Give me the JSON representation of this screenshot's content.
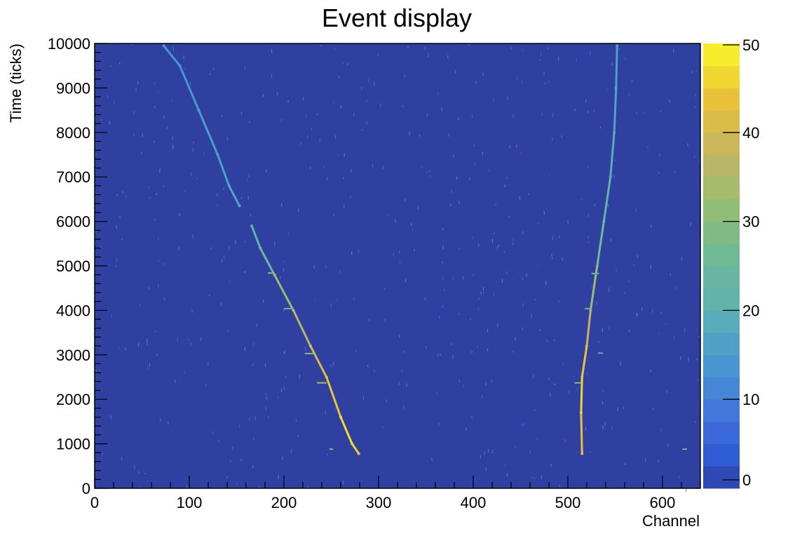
{
  "chart_data": {
    "type": "heatmap",
    "title": "Event display",
    "xlabel": "Channel",
    "ylabel": "Time (ticks)",
    "xlim": [
      0,
      640
    ],
    "ylim": [
      0,
      10000
    ],
    "x_ticks": [
      0,
      100,
      200,
      300,
      400,
      500,
      600
    ],
    "x_tick_labels": [
      "0",
      "100",
      "200",
      "300",
      "400",
      "500",
      "600"
    ],
    "y_ticks": [
      0,
      1000,
      2000,
      3000,
      4000,
      5000,
      6000,
      7000,
      8000,
      9000,
      10000
    ],
    "y_tick_labels": [
      "0",
      "1000",
      "2000",
      "3000",
      "4000",
      "5000",
      "6000",
      "7000",
      "8000",
      "9000",
      "10000"
    ],
    "colorbar": {
      "min": 0,
      "max": 50,
      "ticks": [
        0,
        10,
        20,
        30,
        40,
        50
      ],
      "tick_labels": [
        "0",
        "10",
        "20",
        "30",
        "40",
        "50"
      ]
    },
    "background_value": 1,
    "tracks": [
      {
        "points": [
          {
            "x": 73,
            "y": 9950,
            "v": 14
          },
          {
            "x": 90,
            "y": 9500,
            "v": 14
          },
          {
            "x": 110,
            "y": 8500,
            "v": 15
          },
          {
            "x": 130,
            "y": 7500,
            "v": 16
          },
          {
            "x": 142,
            "y": 6800,
            "v": 17
          },
          {
            "x": 153,
            "y": 6350,
            "v": 18
          }
        ]
      },
      {
        "points": [
          {
            "x": 166,
            "y": 5900,
            "v": 20
          },
          {
            "x": 175,
            "y": 5400,
            "v": 24
          },
          {
            "x": 190,
            "y": 4800,
            "v": 32
          },
          {
            "x": 210,
            "y": 4000,
            "v": 36
          },
          {
            "x": 228,
            "y": 3200,
            "v": 40
          },
          {
            "x": 245,
            "y": 2500,
            "v": 44
          },
          {
            "x": 260,
            "y": 1600,
            "v": 47
          },
          {
            "x": 272,
            "y": 1000,
            "v": 46
          },
          {
            "x": 279,
            "y": 780,
            "v": 45
          }
        ]
      },
      {
        "points": [
          {
            "x": 515,
            "y": 780,
            "v": 44
          },
          {
            "x": 514,
            "y": 1700,
            "v": 46
          },
          {
            "x": 515,
            "y": 2500,
            "v": 44
          },
          {
            "x": 520,
            "y": 3200,
            "v": 38
          },
          {
            "x": 524,
            "y": 4000,
            "v": 33
          },
          {
            "x": 531,
            "y": 5000,
            "v": 26
          },
          {
            "x": 538,
            "y": 6000,
            "v": 22
          },
          {
            "x": 545,
            "y": 7000,
            "v": 19
          },
          {
            "x": 549,
            "y": 8000,
            "v": 17
          },
          {
            "x": 551,
            "y": 9000,
            "v": 16
          },
          {
            "x": 552,
            "y": 9950,
            "v": 15
          }
        ]
      }
    ],
    "blips": [
      {
        "x0": 183,
        "x1": 190,
        "y": 4840,
        "v": 30
      },
      {
        "x0": 200,
        "x1": 210,
        "y": 4040,
        "v": 26
      },
      {
        "x0": 222,
        "x1": 232,
        "y": 3030,
        "v": 30
      },
      {
        "x0": 235,
        "x1": 245,
        "y": 2370,
        "v": 34
      },
      {
        "x0": 248,
        "x1": 252,
        "y": 880,
        "v": 28
      },
      {
        "x0": 507,
        "x1": 514,
        "y": 2370,
        "v": 30
      },
      {
        "x0": 525,
        "x1": 533,
        "y": 4830,
        "v": 24
      },
      {
        "x0": 518,
        "x1": 525,
        "y": 4040,
        "v": 22
      },
      {
        "x0": 532,
        "x1": 537,
        "y": 3040,
        "v": 20
      },
      {
        "x0": 621,
        "x1": 626,
        "y": 880,
        "v": 24
      }
    ]
  }
}
